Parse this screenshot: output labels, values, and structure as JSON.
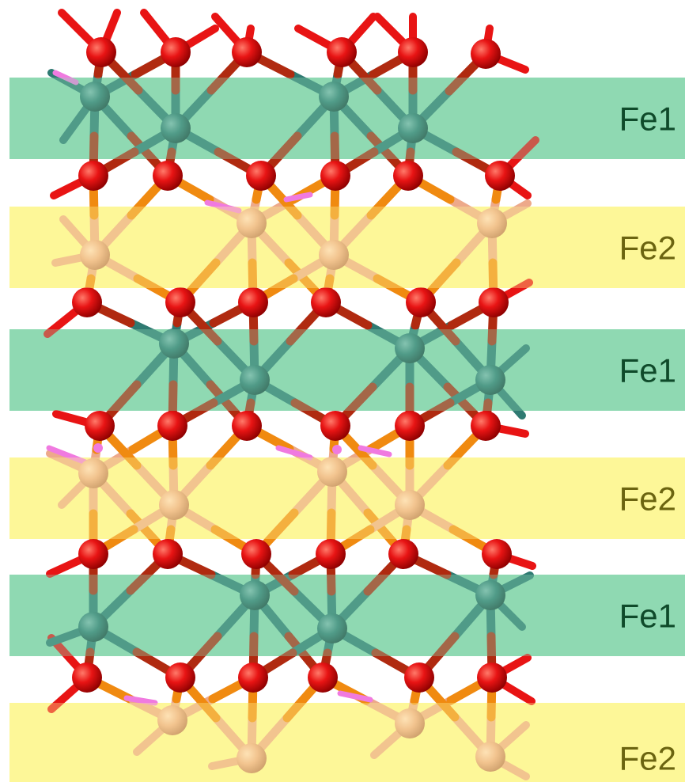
{
  "layers": [
    {
      "label": "Fe1",
      "kind": "fe1"
    },
    {
      "label": "Fe2",
      "kind": "fe2"
    },
    {
      "label": "Fe1",
      "kind": "fe1"
    },
    {
      "label": "Fe2",
      "kind": "fe2"
    },
    {
      "label": "Fe1",
      "kind": "fe1"
    },
    {
      "label": "Fe2",
      "kind": "fe2"
    }
  ],
  "colors": {
    "fe1_band": "#8fd9b3",
    "fe2_band": "#fdf799",
    "fe1_label": "#0f4a2a",
    "fe2_label": "#6b6410",
    "oxygen_atom": "#e81414",
    "fe1_atom": "#2f7a72",
    "fe2_atom": "#eda98a",
    "bond_highlight": "#f07ae0",
    "orange_bond": "#f08a10"
  },
  "atom_types": [
    "O",
    "Fe1",
    "Fe2"
  ]
}
